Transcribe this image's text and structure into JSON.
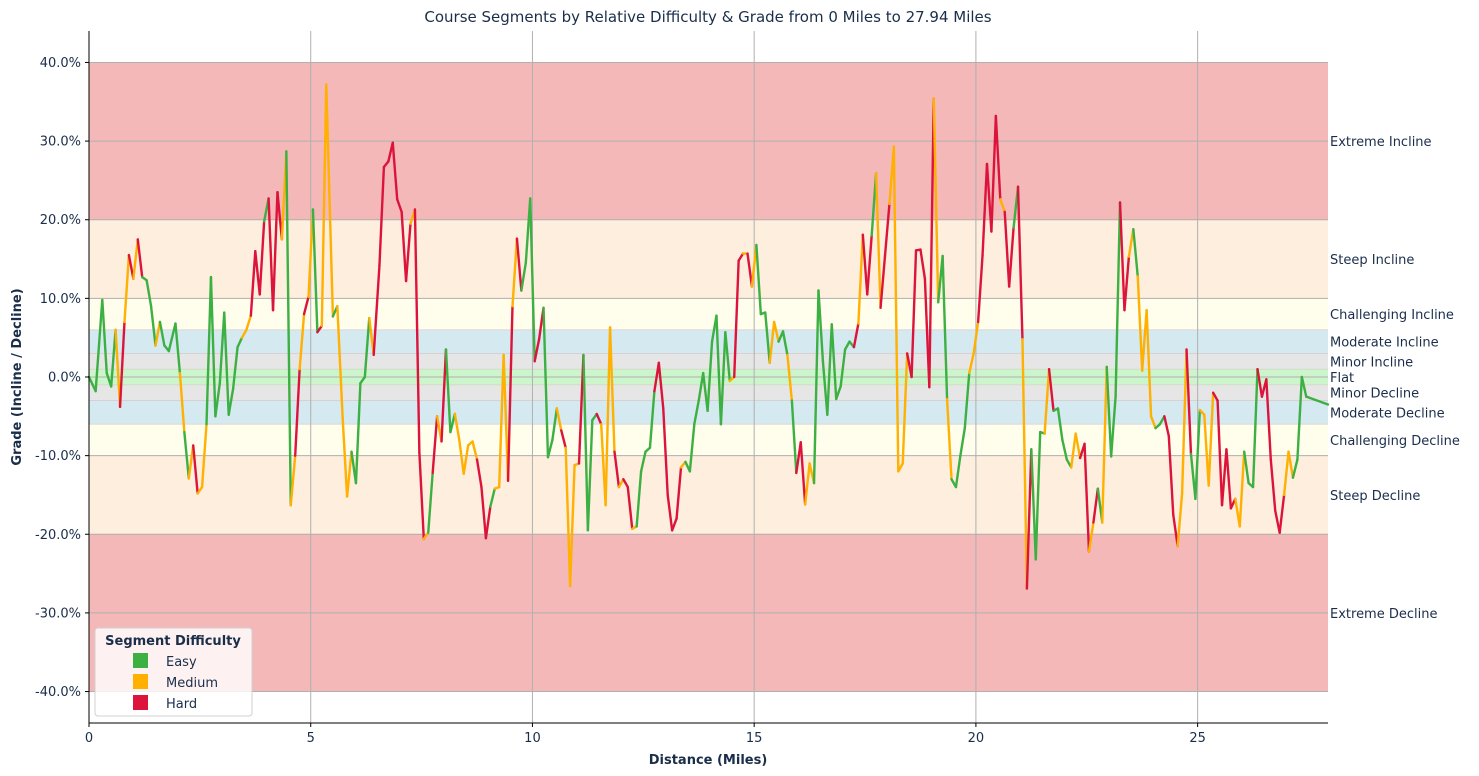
{
  "chart_data": {
    "type": "line",
    "title": "Course Segments by Relative Difficulty & Grade from 0 Miles to 27.94 Miles",
    "xlabel": "Distance (Miles)",
    "ylabel": "Grade (Incline / Decline)",
    "xlim": [
      0,
      27.94
    ],
    "ylim": [
      -44,
      44
    ],
    "xticks": [
      0,
      5,
      10,
      15,
      20,
      25
    ],
    "yticks": [
      -40,
      -30,
      -20,
      -10,
      0,
      10,
      20,
      30,
      40
    ],
    "ytick_format": "percent_one_decimal",
    "grid": true,
    "bands": [
      {
        "label": "Extreme Incline",
        "from": 20,
        "to": 40,
        "color": "#f4b8b8",
        "label_at": 30
      },
      {
        "label": "Steep Incline",
        "from": 10,
        "to": 20,
        "color": "#fdeedd",
        "label_at": 15
      },
      {
        "label": "Challenging Incline",
        "from": 6,
        "to": 10,
        "color": "#fffdec",
        "label_at": 8
      },
      {
        "label": "Moderate Incline",
        "from": 3,
        "to": 6,
        "color": "#d4e9f0",
        "label_at": 4.5
      },
      {
        "label": "Minor Incline",
        "from": 1,
        "to": 3,
        "color": "#e6e6e6",
        "label_at": 2
      },
      {
        "label": "Flat",
        "from": -1,
        "to": 1,
        "color": "#ccf5cc",
        "label_at": 0
      },
      {
        "label": "Minor Decline",
        "from": -3,
        "to": -1,
        "color": "#e6e6e6",
        "label_at": -2
      },
      {
        "label": "Moderate Decline",
        "from": -6,
        "to": -3,
        "color": "#d4e9f0",
        "label_at": -4.5
      },
      {
        "label": "Challenging Decline",
        "from": -10,
        "to": -6,
        "color": "#fffdec",
        "label_at": -8
      },
      {
        "label": "Steep Decline",
        "from": -20,
        "to": -10,
        "color": "#fdeedd",
        "label_at": -15
      },
      {
        "label": "Extreme Decline",
        "from": -40,
        "to": -20,
        "color": "#f4b8b8",
        "label_at": -30
      }
    ],
    "legend": {
      "title": "Segment Difficulty",
      "position": "lower-left",
      "entries": [
        {
          "name": "Easy",
          "color": "#3cb043"
        },
        {
          "name": "Medium",
          "color": "#ffb000"
        },
        {
          "name": "Hard",
          "color": "#dc143c"
        }
      ]
    },
    "difficulty_codes": {
      "E": "Easy",
      "M": "Medium",
      "H": "Hard"
    },
    "points": [
      [
        0.0,
        0.0,
        "E"
      ],
      [
        0.15,
        -1.8,
        "E"
      ],
      [
        0.3,
        9.8,
        "E"
      ],
      [
        0.4,
        0.5,
        "E"
      ],
      [
        0.5,
        -1.2,
        "E"
      ],
      [
        0.6,
        6.0,
        "E"
      ],
      [
        0.7,
        -3.8,
        "M"
      ],
      [
        0.8,
        7.0,
        "H"
      ],
      [
        0.9,
        15.5,
        "M"
      ],
      [
        1.0,
        12.5,
        "H"
      ],
      [
        1.1,
        17.5,
        "M"
      ],
      [
        1.2,
        12.7,
        "H"
      ],
      [
        1.3,
        12.3,
        "E"
      ],
      [
        1.4,
        9.0,
        "E"
      ],
      [
        1.5,
        4.0,
        "E"
      ],
      [
        1.6,
        7.0,
        "M"
      ],
      [
        1.7,
        4.0,
        "E"
      ],
      [
        1.8,
        3.3,
        "E"
      ],
      [
        1.95,
        6.8,
        "E"
      ],
      [
        2.05,
        0.5,
        "E"
      ],
      [
        2.15,
        -7.0,
        "M"
      ],
      [
        2.25,
        -12.9,
        "E"
      ],
      [
        2.35,
        -8.7,
        "M"
      ],
      [
        2.45,
        -14.8,
        "H"
      ],
      [
        2.55,
        -14.0,
        "M"
      ],
      [
        2.65,
        -6.0,
        "M"
      ],
      [
        2.75,
        12.7,
        "E"
      ],
      [
        2.85,
        -5.0,
        "E"
      ],
      [
        2.95,
        -0.8,
        "E"
      ],
      [
        3.05,
        8.2,
        "E"
      ],
      [
        3.15,
        -4.8,
        "E"
      ],
      [
        3.25,
        -1.5,
        "E"
      ],
      [
        3.35,
        3.8,
        "E"
      ],
      [
        3.45,
        5.0,
        "E"
      ],
      [
        3.55,
        6.0,
        "M"
      ],
      [
        3.65,
        7.8,
        "M"
      ],
      [
        3.75,
        16.0,
        "H"
      ],
      [
        3.85,
        10.5,
        "H"
      ],
      [
        3.95,
        19.8,
        "H"
      ],
      [
        4.05,
        22.7,
        "E"
      ],
      [
        4.15,
        8.5,
        "H"
      ],
      [
        4.25,
        23.5,
        "H"
      ],
      [
        4.35,
        17.5,
        "H"
      ],
      [
        4.45,
        28.7,
        "M"
      ],
      [
        4.55,
        -16.3,
        "E"
      ],
      [
        4.65,
        -10.0,
        "M"
      ],
      [
        4.75,
        1.0,
        "H"
      ],
      [
        4.85,
        8.0,
        "M"
      ],
      [
        4.95,
        10.2,
        "H"
      ],
      [
        5.05,
        21.3,
        "M"
      ],
      [
        5.15,
        5.7,
        "E"
      ],
      [
        5.25,
        6.5,
        "H"
      ],
      [
        5.35,
        37.2,
        "M"
      ],
      [
        5.5,
        7.7,
        "M"
      ],
      [
        5.6,
        9.0,
        "E"
      ],
      [
        5.72,
        -5.2,
        "M"
      ],
      [
        5.82,
        -15.2,
        "M"
      ],
      [
        5.92,
        -9.5,
        "M"
      ],
      [
        6.02,
        -13.5,
        "E"
      ],
      [
        6.12,
        -0.8,
        "E"
      ],
      [
        6.22,
        0.0,
        "E"
      ],
      [
        6.32,
        7.5,
        "E"
      ],
      [
        6.42,
        2.8,
        "M"
      ],
      [
        6.55,
        14.2,
        "H"
      ],
      [
        6.65,
        26.7,
        "H"
      ],
      [
        6.75,
        27.4,
        "H"
      ],
      [
        6.85,
        29.8,
        "H"
      ],
      [
        6.95,
        22.6,
        "H"
      ],
      [
        7.05,
        21.0,
        "H"
      ],
      [
        7.15,
        12.2,
        "H"
      ],
      [
        7.25,
        19.5,
        "H"
      ],
      [
        7.35,
        21.3,
        "M"
      ],
      [
        7.45,
        -9.6,
        "H"
      ],
      [
        7.55,
        -20.6,
        "H"
      ],
      [
        7.65,
        -19.8,
        "M"
      ],
      [
        7.75,
        -12.2,
        "E"
      ],
      [
        7.85,
        -5.0,
        "H"
      ],
      [
        7.95,
        -8.2,
        "M"
      ],
      [
        8.05,
        3.5,
        "H"
      ],
      [
        8.15,
        -7.0,
        "E"
      ],
      [
        8.25,
        -4.7,
        "E"
      ],
      [
        8.35,
        -8.0,
        "M"
      ],
      [
        8.45,
        -12.3,
        "M"
      ],
      [
        8.55,
        -8.7,
        "M"
      ],
      [
        8.65,
        -8.2,
        "M"
      ],
      [
        8.75,
        -10.5,
        "M"
      ],
      [
        8.85,
        -14.0,
        "H"
      ],
      [
        8.95,
        -20.5,
        "H"
      ],
      [
        9.05,
        -16.5,
        "H"
      ],
      [
        9.15,
        -14.2,
        "E"
      ],
      [
        9.25,
        -14.0,
        "M"
      ],
      [
        9.35,
        2.8,
        "M"
      ],
      [
        9.45,
        -13.2,
        "M"
      ],
      [
        9.55,
        9.0,
        "H"
      ],
      [
        9.65,
        17.6,
        "M"
      ],
      [
        9.75,
        11.0,
        "H"
      ],
      [
        9.85,
        14.5,
        "E"
      ],
      [
        9.95,
        22.7,
        "E"
      ],
      [
        10.05,
        2.0,
        "E"
      ],
      [
        10.15,
        4.8,
        "H"
      ],
      [
        10.25,
        8.8,
        "H"
      ],
      [
        10.35,
        -10.2,
        "E"
      ],
      [
        10.45,
        -8.0,
        "E"
      ],
      [
        10.55,
        -4.0,
        "E"
      ],
      [
        10.65,
        -6.8,
        "M"
      ],
      [
        10.75,
        -9.0,
        "H"
      ],
      [
        10.85,
        -26.6,
        "M"
      ],
      [
        10.95,
        -11.2,
        "M"
      ],
      [
        11.05,
        -11.0,
        "M"
      ],
      [
        11.15,
        2.8,
        "H"
      ],
      [
        11.25,
        -19.5,
        "E"
      ],
      [
        11.35,
        -5.5,
        "E"
      ],
      [
        11.45,
        -4.7,
        "E"
      ],
      [
        11.55,
        -6.0,
        "H"
      ],
      [
        11.65,
        -16.3,
        "M"
      ],
      [
        11.75,
        6.3,
        "M"
      ],
      [
        11.85,
        -9.5,
        "M"
      ],
      [
        11.95,
        -14.0,
        "H"
      ],
      [
        12.05,
        -13.0,
        "M"
      ],
      [
        12.15,
        -14.0,
        "H"
      ],
      [
        12.25,
        -19.3,
        "H"
      ],
      [
        12.35,
        -19.0,
        "M"
      ],
      [
        12.45,
        -12.0,
        "E"
      ],
      [
        12.55,
        -9.5,
        "E"
      ],
      [
        12.65,
        -9.0,
        "E"
      ],
      [
        12.75,
        -1.8,
        "E"
      ],
      [
        12.85,
        1.8,
        "H"
      ],
      [
        12.95,
        -4.0,
        "H"
      ],
      [
        13.05,
        -15.0,
        "H"
      ],
      [
        13.15,
        -19.5,
        "H"
      ],
      [
        13.25,
        -18.0,
        "H"
      ],
      [
        13.35,
        -11.5,
        "H"
      ],
      [
        13.45,
        -10.8,
        "M"
      ],
      [
        13.55,
        -12.0,
        "E"
      ],
      [
        13.65,
        -6.0,
        "E"
      ],
      [
        13.75,
        -3.0,
        "E"
      ],
      [
        13.85,
        0.5,
        "E"
      ],
      [
        13.95,
        -4.3,
        "E"
      ],
      [
        14.05,
        4.5,
        "E"
      ],
      [
        14.15,
        7.8,
        "E"
      ],
      [
        14.25,
        -6.0,
        "E"
      ],
      [
        14.35,
        5.7,
        "E"
      ],
      [
        14.45,
        -0.5,
        "E"
      ],
      [
        14.55,
        0.0,
        "M"
      ],
      [
        14.65,
        14.8,
        "H"
      ],
      [
        14.75,
        15.7,
        "H"
      ],
      [
        14.85,
        15.7,
        "M"
      ],
      [
        14.95,
        11.5,
        "H"
      ],
      [
        15.05,
        16.8,
        "M"
      ],
      [
        15.15,
        8.0,
        "E"
      ],
      [
        15.25,
        8.2,
        "E"
      ],
      [
        15.35,
        1.8,
        "E"
      ],
      [
        15.45,
        7.0,
        "M"
      ],
      [
        15.55,
        4.5,
        "M"
      ],
      [
        15.65,
        5.8,
        "E"
      ],
      [
        15.75,
        2.8,
        "E"
      ],
      [
        15.85,
        -3.0,
        "M"
      ],
      [
        15.95,
        -12.2,
        "E"
      ],
      [
        16.05,
        -8.3,
        "H"
      ],
      [
        16.15,
        -16.2,
        "H"
      ],
      [
        16.25,
        -11.0,
        "M"
      ],
      [
        16.35,
        -13.5,
        "M"
      ],
      [
        16.45,
        11.0,
        "E"
      ],
      [
        16.55,
        2.0,
        "E"
      ],
      [
        16.65,
        -4.8,
        "E"
      ],
      [
        16.75,
        6.7,
        "E"
      ],
      [
        16.85,
        -2.8,
        "E"
      ],
      [
        16.95,
        -1.2,
        "E"
      ],
      [
        17.05,
        3.5,
        "E"
      ],
      [
        17.15,
        4.5,
        "E"
      ],
      [
        17.25,
        3.8,
        "E"
      ],
      [
        17.35,
        6.8,
        "H"
      ],
      [
        17.45,
        18.1,
        "M"
      ],
      [
        17.55,
        10.5,
        "H"
      ],
      [
        17.65,
        18.0,
        "H"
      ],
      [
        17.75,
        25.9,
        "E"
      ],
      [
        17.85,
        8.8,
        "M"
      ],
      [
        17.95,
        15.4,
        "H"
      ],
      [
        18.05,
        22.0,
        "H"
      ],
      [
        18.15,
        29.3,
        "M"
      ],
      [
        18.25,
        -12.0,
        "M"
      ],
      [
        18.35,
        -11.0,
        "M"
      ],
      [
        18.45,
        3.0,
        "M"
      ],
      [
        18.55,
        0.0,
        "H"
      ],
      [
        18.65,
        16.1,
        "H"
      ],
      [
        18.75,
        16.2,
        "H"
      ],
      [
        18.85,
        12.5,
        "H"
      ],
      [
        18.95,
        -1.3,
        "H"
      ],
      [
        19.05,
        35.4,
        "H"
      ],
      [
        19.15,
        9.5,
        "M"
      ],
      [
        19.25,
        15.4,
        "E"
      ],
      [
        19.35,
        -2.8,
        "E"
      ],
      [
        19.45,
        -13.0,
        "M"
      ],
      [
        19.55,
        -14.0,
        "E"
      ],
      [
        19.65,
        -10.0,
        "E"
      ],
      [
        19.75,
        -6.5,
        "E"
      ],
      [
        19.85,
        0.5,
        "E"
      ],
      [
        19.95,
        3.0,
        "M"
      ],
      [
        20.05,
        7.0,
        "M"
      ],
      [
        20.15,
        15.5,
        "H"
      ],
      [
        20.25,
        27.1,
        "H"
      ],
      [
        20.35,
        18.5,
        "H"
      ],
      [
        20.45,
        33.2,
        "H"
      ],
      [
        20.55,
        22.6,
        "H"
      ],
      [
        20.65,
        21.0,
        "M"
      ],
      [
        20.75,
        11.5,
        "H"
      ],
      [
        20.85,
        19.0,
        "H"
      ],
      [
        20.95,
        24.2,
        "E"
      ],
      [
        21.05,
        4.8,
        "H"
      ],
      [
        21.15,
        -26.9,
        "M"
      ],
      [
        21.25,
        -9.2,
        "H"
      ],
      [
        21.35,
        -23.2,
        "E"
      ],
      [
        21.45,
        -7.0,
        "E"
      ],
      [
        21.55,
        -7.2,
        "E"
      ],
      [
        21.65,
        1.0,
        "M"
      ],
      [
        21.75,
        -4.3,
        "H"
      ],
      [
        21.85,
        -4.0,
        "E"
      ],
      [
        21.95,
        -8.0,
        "E"
      ],
      [
        22.05,
        -10.5,
        "E"
      ],
      [
        22.15,
        -11.5,
        "E"
      ],
      [
        22.25,
        -7.2,
        "M"
      ],
      [
        22.35,
        -10.3,
        "M"
      ],
      [
        22.45,
        -8.5,
        "H"
      ],
      [
        22.55,
        -22.2,
        "H"
      ],
      [
        22.65,
        -18.5,
        "M"
      ],
      [
        22.75,
        -14.2,
        "H"
      ],
      [
        22.85,
        -18.5,
        "E"
      ],
      [
        22.95,
        1.3,
        "M"
      ],
      [
        23.05,
        -10.1,
        "E"
      ],
      [
        23.15,
        -2.5,
        "E"
      ],
      [
        23.25,
        22.2,
        "E"
      ],
      [
        23.35,
        8.5,
        "H"
      ],
      [
        23.45,
        15.3,
        "H"
      ],
      [
        23.55,
        18.8,
        "M"
      ],
      [
        23.65,
        12.8,
        "E"
      ],
      [
        23.75,
        0.8,
        "M"
      ],
      [
        23.85,
        8.5,
        "M"
      ],
      [
        23.95,
        -5.0,
        "M"
      ],
      [
        24.05,
        -6.5,
        "M"
      ],
      [
        24.15,
        -6.0,
        "E"
      ],
      [
        24.25,
        -5.0,
        "E"
      ],
      [
        24.35,
        -7.5,
        "H"
      ],
      [
        24.45,
        -17.5,
        "H"
      ],
      [
        24.55,
        -21.5,
        "H"
      ],
      [
        24.65,
        -14.8,
        "M"
      ],
      [
        24.75,
        3.5,
        "M"
      ],
      [
        24.85,
        -9.8,
        "H"
      ],
      [
        24.95,
        -15.5,
        "E"
      ],
      [
        25.05,
        -4.2,
        "E"
      ],
      [
        25.15,
        -4.8,
        "M"
      ],
      [
        25.25,
        -13.8,
        "M"
      ],
      [
        25.35,
        -2.0,
        "M"
      ],
      [
        25.45,
        -3.0,
        "H"
      ],
      [
        25.55,
        -16.3,
        "H"
      ],
      [
        25.65,
        -9.2,
        "H"
      ],
      [
        25.75,
        -16.7,
        "H"
      ],
      [
        25.85,
        -15.5,
        "H"
      ],
      [
        25.95,
        -19.0,
        "M"
      ],
      [
        26.05,
        -9.5,
        "M"
      ],
      [
        26.15,
        -13.5,
        "E"
      ],
      [
        26.25,
        -14.0,
        "E"
      ],
      [
        26.35,
        1.0,
        "E"
      ],
      [
        26.45,
        -2.5,
        "H"
      ],
      [
        26.55,
        -0.3,
        "H"
      ],
      [
        26.65,
        -10.5,
        "H"
      ],
      [
        26.75,
        -17.0,
        "H"
      ],
      [
        26.85,
        -19.8,
        "H"
      ],
      [
        26.95,
        -15.0,
        "H"
      ],
      [
        27.05,
        -9.5,
        "M"
      ],
      [
        27.15,
        -12.8,
        "M"
      ],
      [
        27.25,
        -10.5,
        "E"
      ],
      [
        27.35,
        0.0,
        "E"
      ],
      [
        27.45,
        -2.5,
        "E"
      ],
      [
        27.94,
        -3.5,
        "E"
      ]
    ]
  }
}
